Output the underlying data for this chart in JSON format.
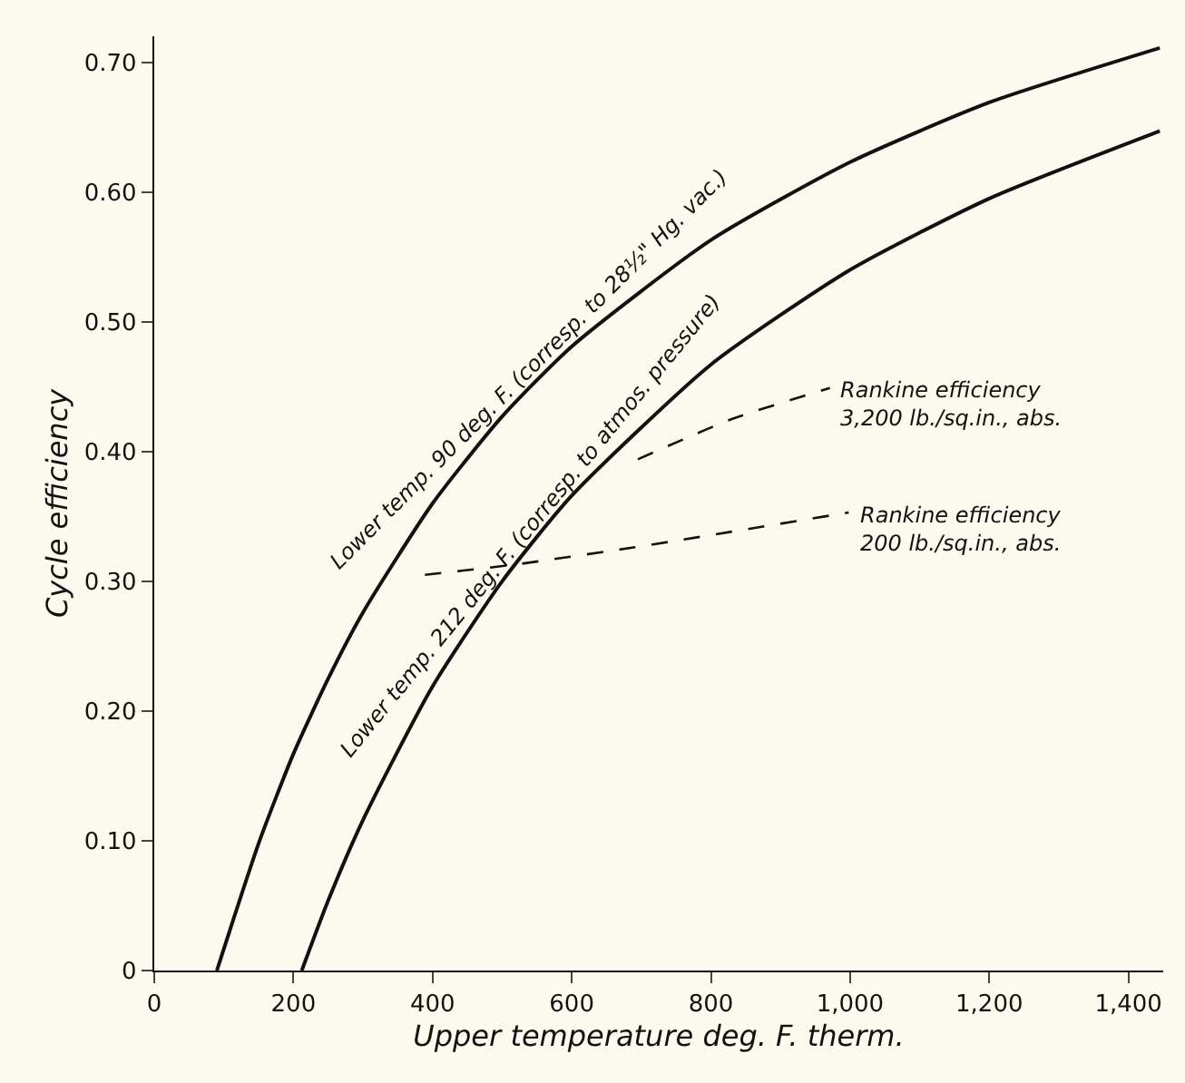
{
  "chart_data": {
    "type": "line",
    "xlabel": "Upper temperature deg. F. therm.",
    "ylabel": "Cycle efficiency",
    "xlim": [
      0,
      1450
    ],
    "ylim": [
      0,
      0.72
    ],
    "xticks": [
      0,
      200,
      400,
      600,
      800,
      {
        "value": 1000,
        "label": "1,000"
      },
      {
        "value": 1200,
        "label": "1,200"
      },
      {
        "value": 1400,
        "label": "1,400"
      }
    ],
    "yticks": [
      0,
      {
        "value": 0.1,
        "label": "0.10"
      },
      {
        "value": 0.2,
        "label": "0.20"
      },
      {
        "value": 0.3,
        "label": "0.30"
      },
      {
        "value": 0.4,
        "label": "0.40"
      },
      {
        "value": 0.5,
        "label": "0.50"
      },
      {
        "value": 0.6,
        "label": "0.60"
      },
      {
        "value": 0.7,
        "label": "0.70"
      }
    ],
    "grid": false,
    "legend": false,
    "marker": "none",
    "series": [
      {
        "name": "Lower temp. 90 deg. F. (corresp. to 28½\" Hg. vac.)",
        "color": "#111111",
        "line_style": "solid",
        "x": [
          90,
          150,
          200,
          250,
          300,
          400,
          500,
          600,
          800,
          1000,
          1200,
          1445
        ],
        "values": [
          0,
          0.098,
          0.167,
          0.225,
          0.276,
          0.36,
          0.427,
          0.481,
          0.563,
          0.623,
          0.669,
          0.711
        ]
      },
      {
        "name": "Lower temp. 212 deg. F. (corresp. to atmos. pressure)",
        "color": "#111111",
        "line_style": "solid",
        "x": [
          212,
          250,
          300,
          400,
          500,
          600,
          800,
          1000,
          1200,
          1445
        ],
        "values": [
          0,
          0.054,
          0.116,
          0.219,
          0.3,
          0.366,
          0.467,
          0.54,
          0.595,
          0.647
        ]
      },
      {
        "name": "Rankine efficiency\n3,200 lb./sq.in., abs.",
        "color": "#111111",
        "line_style": "dashed",
        "x": [
          695,
          830,
          971
        ],
        "values": [
          0.394,
          0.425,
          0.449
        ]
      },
      {
        "name": "Rankine efficiency\n200 lb./sq.in., abs.",
        "color": "#111111",
        "line_style": "dashed",
        "x": [
          389,
          520,
          700,
          998
        ],
        "values": [
          0.305,
          0.313,
          0.327,
          0.353
        ]
      }
    ]
  }
}
